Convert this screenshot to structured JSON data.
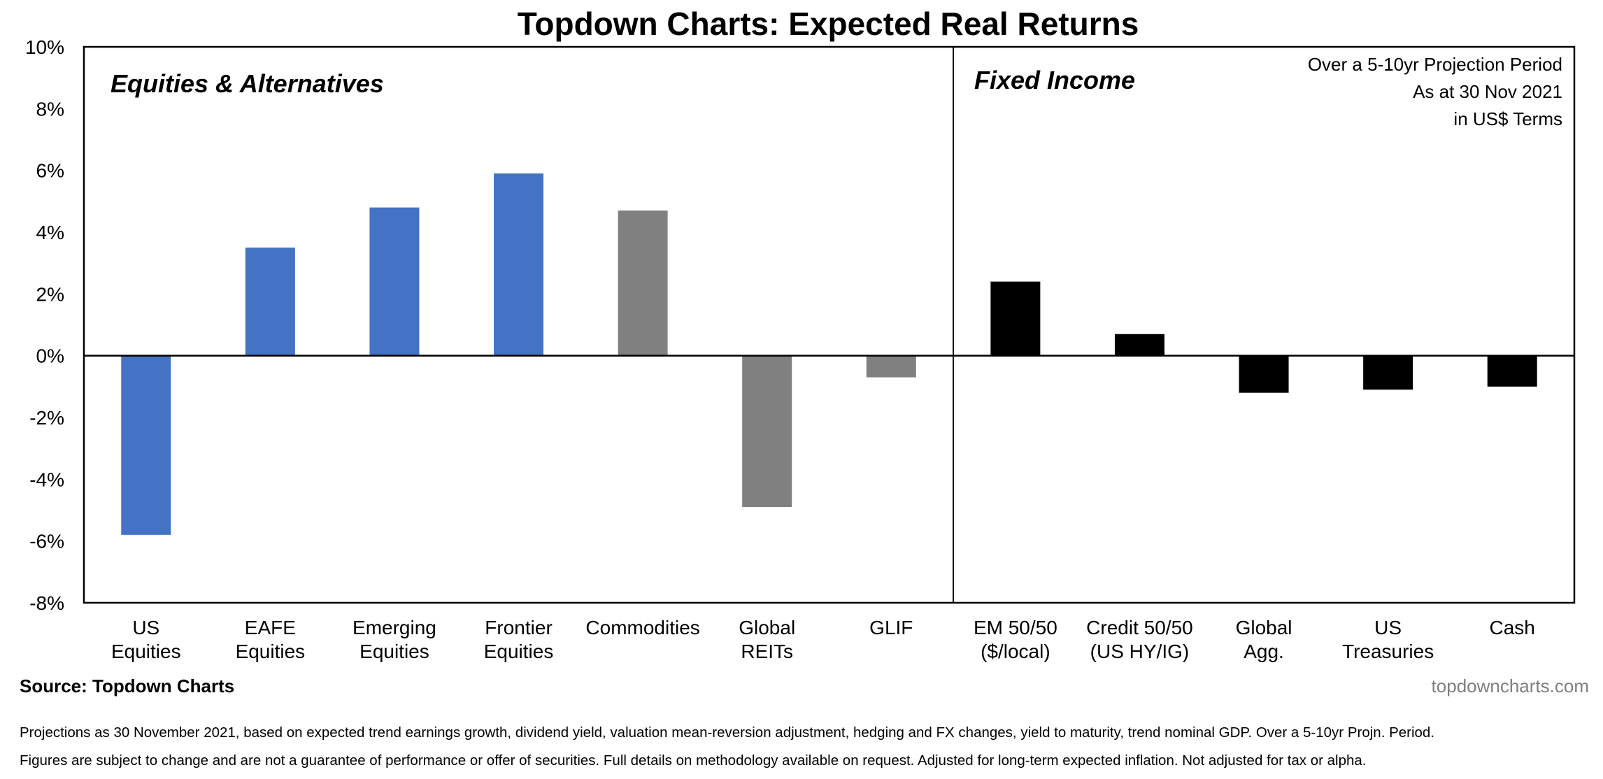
{
  "chart_data": {
    "type": "bar",
    "title": "Topdown Charts: Expected Real Returns",
    "ylim": [
      -8,
      10
    ],
    "y_ticks": [
      "10%",
      "8%",
      "6%",
      "4%",
      "2%",
      "0%",
      "-2%",
      "-4%",
      "-6%",
      "-8%"
    ],
    "y_tick_values": [
      10,
      8,
      6,
      4,
      2,
      0,
      -2,
      -4,
      -6,
      -8
    ],
    "grid": false,
    "panels": [
      {
        "label": "Equities & Alternatives"
      },
      {
        "label": "Fixed Income"
      }
    ],
    "annotation_lines": [
      "Over a 5-10yr Projection Period",
      "As at 30 Nov 2021",
      "in US$ Terms"
    ],
    "categories": [
      {
        "lines": [
          "US",
          "Equities"
        ],
        "value": -5.8,
        "color": "#4472C4",
        "panel": 0
      },
      {
        "lines": [
          "EAFE",
          "Equities"
        ],
        "value": 3.5,
        "color": "#4472C4",
        "panel": 0
      },
      {
        "lines": [
          "Emerging",
          "Equities"
        ],
        "value": 4.8,
        "color": "#4472C4",
        "panel": 0
      },
      {
        "lines": [
          "Frontier",
          "Equities"
        ],
        "value": 5.9,
        "color": "#4472C4",
        "panel": 0
      },
      {
        "lines": [
          "Commodities"
        ],
        "value": 4.7,
        "color": "#808080",
        "panel": 0
      },
      {
        "lines": [
          "Global",
          "REITs"
        ],
        "value": -4.9,
        "color": "#808080",
        "panel": 0
      },
      {
        "lines": [
          "GLIF"
        ],
        "value": -0.7,
        "color": "#808080",
        "panel": 0
      },
      {
        "lines": [
          "EM 50/50",
          "($/local)"
        ],
        "value": 2.4,
        "color": "#000000",
        "panel": 1
      },
      {
        "lines": [
          "Credit 50/50",
          "(US HY/IG)"
        ],
        "value": 0.7,
        "color": "#000000",
        "panel": 1
      },
      {
        "lines": [
          "Global",
          "Agg."
        ],
        "value": -1.2,
        "color": "#000000",
        "panel": 1
      },
      {
        "lines": [
          "US",
          "Treasuries"
        ],
        "value": -1.1,
        "color": "#000000",
        "panel": 1
      },
      {
        "lines": [
          "Cash"
        ],
        "value": -1.0,
        "color": "#000000",
        "panel": 1
      }
    ]
  },
  "footer": {
    "source": "Source: Topdown Charts",
    "site": "topdowncharts.com",
    "note1": "Projections as 30 November 2021, based on expected trend earnings growth, dividend yield, valuation mean-reversion adjustment, hedging and FX changes, yield to maturity, trend nominal GDP. Over a  5-10yr Projn. Period.",
    "note2": "Figures are subject to change and are not a guarantee of performance or offer of securities.  Full details on methodology available on request.  Adjusted for long-term expected inflation.  Not adjusted for tax or alpha."
  }
}
